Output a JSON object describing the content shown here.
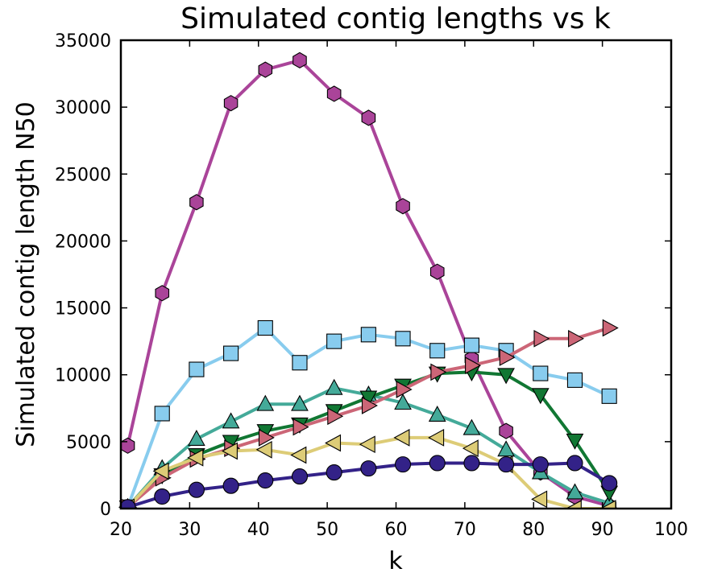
{
  "chart_data": {
    "type": "line",
    "title": "Simulated contig lengths vs k",
    "xlabel": "k",
    "ylabel": "Simulated contig length N50",
    "xlim": [
      20,
      100
    ],
    "ylim": [
      0,
      35000
    ],
    "xticks": [
      20,
      30,
      40,
      50,
      60,
      70,
      80,
      90,
      100
    ],
    "yticks": [
      0,
      5000,
      10000,
      15000,
      20000,
      25000,
      30000,
      35000
    ],
    "xtick_labels": [
      "20",
      "30",
      "40",
      "50",
      "60",
      "70",
      "80",
      "90",
      "100"
    ],
    "ytick_labels": [
      "0",
      "5000",
      "10000",
      "15000",
      "20000",
      "25000",
      "30000",
      "35000"
    ],
    "grid": false,
    "x": [
      21,
      26,
      31,
      36,
      41,
      46,
      51,
      56,
      61,
      66,
      71,
      76,
      81,
      86,
      91
    ],
    "series": [
      {
        "color": "#aa4499",
        "marker": "hexagon",
        "values": [
          4700,
          16100,
          22900,
          30300,
          32800,
          33500,
          31000,
          29200,
          22600,
          17700,
          11200,
          5800,
          2700,
          900,
          200
        ]
      },
      {
        "color": "#88ccee",
        "marker": "square",
        "values": [
          100,
          7100,
          10400,
          11600,
          13500,
          10900,
          12500,
          13000,
          12700,
          11800,
          12200,
          11800,
          10100,
          9600,
          8400
        ]
      },
      {
        "color": "#44aa99",
        "marker": "triangle-up",
        "values": [
          100,
          3000,
          5200,
          6500,
          7800,
          7800,
          9000,
          8500,
          7900,
          7000,
          6000,
          4400,
          2700,
          1200,
          400
        ]
      },
      {
        "color": "#117733",
        "marker": "triangle-down",
        "values": [
          100,
          2500,
          4000,
          5000,
          5800,
          6300,
          7300,
          8300,
          9200,
          10100,
          10200,
          10000,
          8500,
          5100,
          1200
        ]
      },
      {
        "color": "#cc6677",
        "marker": "triangle-right",
        "values": [
          100,
          2300,
          3700,
          4500,
          5300,
          6100,
          6900,
          7700,
          8900,
          10200,
          10700,
          11300,
          12700,
          12700,
          13500
        ]
      },
      {
        "color": "#ddcc77",
        "marker": "triangle-left",
        "values": [
          100,
          2800,
          3800,
          4300,
          4400,
          4000,
          4900,
          4800,
          5300,
          5300,
          4500,
          3300,
          700,
          0,
          0
        ]
      },
      {
        "color": "#332288",
        "marker": "circle",
        "values": [
          100,
          900,
          1400,
          1700,
          2100,
          2400,
          2700,
          3000,
          3300,
          3400,
          3400,
          3300,
          3300,
          3400,
          1900
        ]
      }
    ]
  }
}
